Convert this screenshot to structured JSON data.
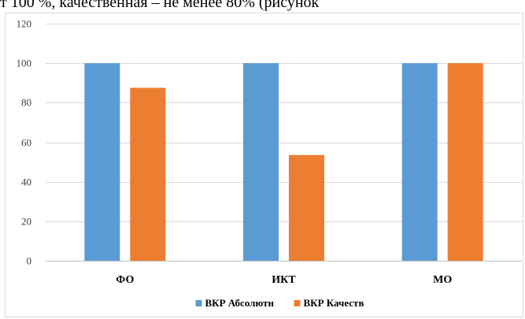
{
  "document_text": "т 100 %, качественная – не менее 80% (рисунок",
  "colors": {
    "series_1": "#5b9bd5",
    "series_2": "#ed7d31"
  },
  "chart_data": {
    "type": "bar",
    "categories": [
      "ФО",
      "ИКТ",
      "МО"
    ],
    "series": [
      {
        "name": "ВКР Абсолютн",
        "values": [
          100,
          100,
          100
        ]
      },
      {
        "name": "ВКР Качеств",
        "values": [
          87.5,
          53.5,
          100
        ]
      }
    ],
    "ylim": [
      0,
      120
    ],
    "yticks": [
      0,
      20,
      40,
      60,
      80,
      100,
      120
    ],
    "grid": true,
    "legend_position": "bottom"
  }
}
